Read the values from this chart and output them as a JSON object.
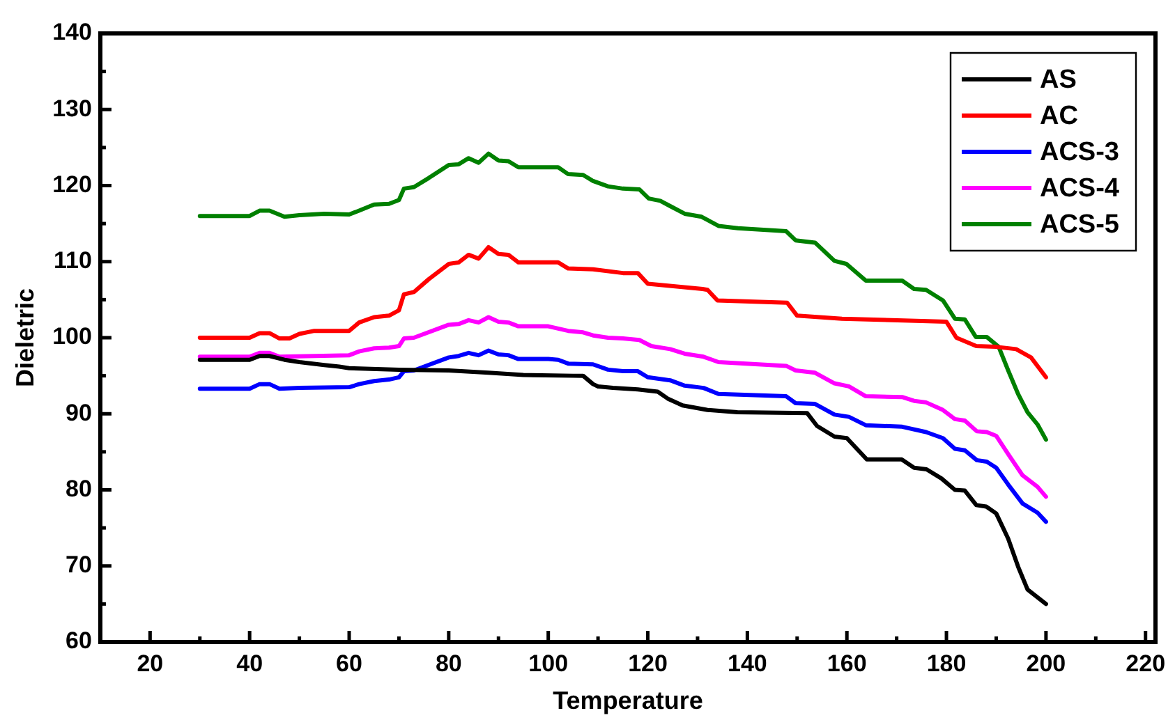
{
  "chart_data": {
    "type": "line",
    "xlabel": "Temperature",
    "ylabel": "Dieletric",
    "xlim": [
      10,
      222
    ],
    "ylim": [
      60,
      140
    ],
    "xticks": [
      20,
      {
        "value": 30,
        "label": null
      },
      40,
      {
        "value": 50,
        "label": null
      },
      60,
      {
        "value": 70,
        "label": null
      },
      80,
      {
        "value": 90,
        "label": null
      },
      100,
      {
        "value": 110,
        "label": null
      },
      120,
      {
        "value": 130,
        "label": null
      },
      140,
      {
        "value": 150,
        "label": null
      },
      160,
      {
        "value": 170,
        "label": null
      },
      180,
      {
        "value": 190,
        "label": null
      },
      200,
      {
        "value": 210,
        "label": null
      },
      220
    ],
    "yticks": [
      60,
      {
        "value": 65,
        "label": null
      },
      70,
      {
        "value": 75,
        "label": null
      },
      80,
      {
        "value": 85,
        "label": null
      },
      90,
      {
        "value": 95,
        "label": null
      },
      100,
      {
        "value": 105,
        "label": null
      },
      110,
      {
        "value": 115,
        "label": null
      },
      120,
      {
        "value": 125,
        "label": null
      },
      130,
      {
        "value": 135,
        "label": null
      },
      140
    ],
    "grid": false,
    "legend": "top right",
    "marker": "none",
    "line_style": "solid",
    "series": [
      {
        "name": "AS",
        "color": "#000000",
        "x": [
          30,
          40,
          42,
          44,
          47,
          50,
          55,
          58,
          60,
          70,
          80,
          88,
          95,
          105,
          107,
          109,
          110,
          113,
          118,
          122,
          124,
          127,
          132,
          138,
          152,
          154,
          157.5,
          160,
          164,
          171,
          173.5,
          176,
          179,
          181.7,
          183.7,
          186,
          188,
          190,
          192.4,
          194.4,
          196.3,
          200
        ],
        "values": [
          97.1,
          97.1,
          97.6,
          97.6,
          97.1,
          96.8,
          96.4,
          96.2,
          96,
          95.8,
          95.7,
          95.4,
          95.1,
          95,
          95,
          93.9,
          93.6,
          93.4,
          93.2,
          92.9,
          92,
          91.1,
          90.5,
          90.2,
          90.1,
          88.4,
          87,
          86.8,
          84,
          84,
          82.9,
          82.7,
          81.5,
          80,
          79.9,
          78,
          77.8,
          76.9,
          73.6,
          69.9,
          66.9,
          65
        ]
      },
      {
        "name": "AC",
        "color": "#ff0000",
        "x": [
          30,
          40,
          42,
          44,
          46,
          48,
          50,
          53,
          60,
          62,
          65,
          68,
          70,
          71,
          73,
          76,
          80,
          82,
          84,
          86,
          88,
          90,
          92,
          94,
          100,
          102,
          104,
          109,
          115,
          118,
          120,
          131,
          132,
          134,
          148,
          150,
          159,
          180,
          182,
          186,
          190,
          194,
          197,
          200
        ],
        "values": [
          100,
          100,
          100.6,
          100.6,
          99.9,
          99.9,
          100.5,
          100.9,
          100.9,
          102,
          102.7,
          102.9,
          103.6,
          105.7,
          106,
          107.7,
          109.7,
          109.9,
          110.9,
          110.4,
          111.9,
          111,
          110.9,
          109.9,
          109.9,
          109.9,
          109.1,
          109,
          108.5,
          108.5,
          107.1,
          106.4,
          106.3,
          104.9,
          104.6,
          102.9,
          102.5,
          102.1,
          100,
          98.9,
          98.8,
          98.5,
          97.4,
          94.8
        ]
      },
      {
        "name": "ACS-3",
        "color": "#0000ff",
        "x": [
          30,
          40,
          42,
          44,
          46,
          50,
          60,
          62,
          65,
          68,
          70,
          71,
          73,
          80,
          82,
          84,
          86,
          88,
          90,
          92,
          94,
          100,
          102,
          104,
          109,
          112,
          115,
          118,
          120,
          124.5,
          127.4,
          131.2,
          134.2,
          147.8,
          149.7,
          153.6,
          157.5,
          160.4,
          163.8,
          171.1,
          175.9,
          179.3,
          181.7,
          183.7,
          186.1,
          188.1,
          190,
          192.4,
          195.3,
          198.3,
          200
        ],
        "values": [
          93.3,
          93.3,
          93.9,
          93.9,
          93.3,
          93.4,
          93.5,
          93.9,
          94.3,
          94.5,
          94.8,
          95.6,
          95.7,
          97.4,
          97.6,
          98,
          97.7,
          98.3,
          97.8,
          97.7,
          97.2,
          97.2,
          97.1,
          96.6,
          96.5,
          95.8,
          95.6,
          95.6,
          94.8,
          94.4,
          93.7,
          93.4,
          92.6,
          92.3,
          91.4,
          91.3,
          89.9,
          89.6,
          88.5,
          88.3,
          87.6,
          86.8,
          85.4,
          85.2,
          83.9,
          83.7,
          82.9,
          80.7,
          78.2,
          77,
          75.8
        ]
      },
      {
        "name": "ACS-4",
        "color": "#ff00ff",
        "x": [
          30,
          40,
          42,
          44,
          46,
          60,
          62,
          65,
          68,
          70,
          71,
          73,
          80,
          82,
          84,
          86,
          88,
          90,
          92,
          94,
          100,
          104,
          107,
          109,
          112,
          115,
          118.3,
          120.7,
          124.5,
          127.4,
          131.2,
          134.2,
          147.8,
          149.7,
          153.6,
          157.5,
          160.4,
          163.8,
          171.1,
          173.5,
          175.9,
          179.3,
          181.7,
          183.7,
          186.1,
          188.1,
          190,
          192.4,
          195.3,
          198.3,
          200
        ],
        "values": [
          97.5,
          97.5,
          98,
          98,
          97.5,
          97.7,
          98.2,
          98.6,
          98.7,
          98.9,
          99.9,
          100,
          101.7,
          101.8,
          102.3,
          102,
          102.7,
          102.1,
          102,
          101.5,
          101.5,
          100.9,
          100.7,
          100.3,
          100,
          99.9,
          99.7,
          98.9,
          98.5,
          97.9,
          97.5,
          96.8,
          96.3,
          95.7,
          95.4,
          94,
          93.6,
          92.3,
          92.2,
          91.7,
          91.5,
          90.5,
          89.3,
          89.1,
          87.7,
          87.6,
          87.1,
          84.7,
          81.9,
          80.4,
          79.1
        ]
      },
      {
        "name": "ACS-5",
        "color": "#008000",
        "x": [
          30,
          40,
          42,
          44,
          47,
          50,
          55,
          60,
          62,
          65,
          68,
          70,
          71,
          73,
          76,
          80,
          82,
          84,
          86,
          88,
          90,
          92,
          94,
          100,
          102,
          104,
          107,
          109,
          112,
          115,
          118.3,
          120.2,
          122.5,
          124.5,
          127.4,
          130.8,
          134.2,
          138.1,
          147.8,
          149.7,
          153.6,
          157.5,
          159.9,
          163.8,
          171.1,
          173.5,
          175.9,
          179.3,
          181.7,
          183.7,
          185.9,
          188.1,
          190.5,
          192.4,
          194.4,
          196.3,
          198.3,
          200
        ],
        "values": [
          116,
          116,
          116.7,
          116.7,
          115.9,
          116.1,
          116.3,
          116.2,
          116.7,
          117.5,
          117.6,
          118.1,
          119.6,
          119.8,
          121,
          122.7,
          122.8,
          123.6,
          123,
          124.2,
          123.3,
          123.2,
          122.4,
          122.4,
          122.4,
          121.5,
          121.4,
          120.6,
          119.9,
          119.6,
          119.5,
          118.3,
          118,
          117.3,
          116.3,
          115.9,
          114.7,
          114.4,
          114,
          112.8,
          112.5,
          110.1,
          109.7,
          107.5,
          107.5,
          106.4,
          106.3,
          104.9,
          102.5,
          102.4,
          100.1,
          100.1,
          98.8,
          95.7,
          92.6,
          90.2,
          88.6,
          86.6
        ]
      }
    ]
  }
}
